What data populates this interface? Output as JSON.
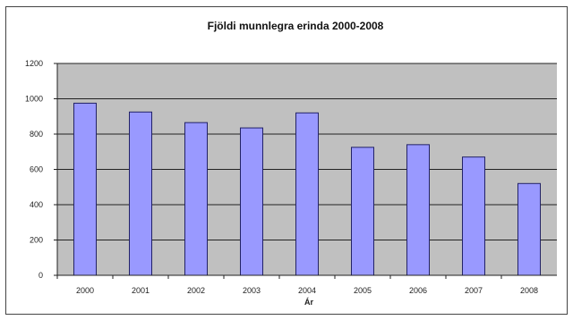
{
  "chart_data": {
    "type": "bar",
    "title": "Fjöldi munnlegra erinda 2000-2008",
    "xlabel": "Ár",
    "ylabel": "",
    "categories": [
      "2000",
      "2001",
      "2002",
      "2003",
      "2004",
      "2005",
      "2006",
      "2007",
      "2008"
    ],
    "values": [
      975,
      925,
      865,
      835,
      920,
      725,
      740,
      670,
      520
    ],
    "ylim": [
      0,
      1200
    ],
    "yticks": [
      "0",
      "200",
      "400",
      "600",
      "800",
      "1000",
      "1200"
    ],
    "grid": true,
    "legend": "none",
    "colors": {
      "bar_fill": "#9999ff",
      "bar_stroke": "#222266",
      "plot_background": "#c0c0c0",
      "gridline": "#222222"
    }
  }
}
